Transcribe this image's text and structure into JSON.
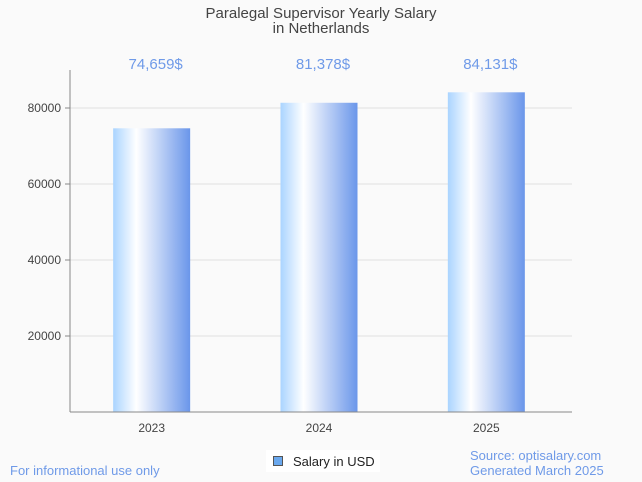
{
  "chart_data": {
    "type": "bar",
    "title": "Paralegal Supervisor Yearly Salary",
    "subtitle": "in Netherlands",
    "categories": [
      "2023",
      "2024",
      "2025"
    ],
    "values": [
      74659,
      81378,
      84131
    ],
    "data_labels": [
      "74,659$",
      "81,378$",
      "84,131$"
    ],
    "yticks": [
      20000,
      40000,
      60000,
      80000
    ],
    "ylim": [
      0,
      90000
    ],
    "xlabel": "",
    "ylabel": "",
    "grid": true,
    "legend": {
      "label": "Salary in USD",
      "placement": "bottom-center"
    },
    "colors": {
      "bar_start": "#aad4ff",
      "bar_mid": "#ffffff",
      "bar_end": "#6a96ea",
      "label": "#6f9ae8"
    }
  },
  "footer": {
    "disclaimer": "For informational use only",
    "source": "Source: optisalary.com",
    "generated": "Generated March 2025"
  }
}
